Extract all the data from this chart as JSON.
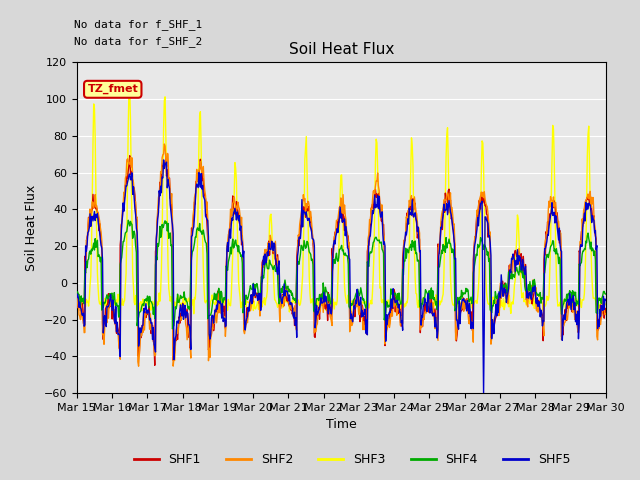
{
  "title": "Soil Heat Flux",
  "ylabel": "Soil Heat Flux",
  "xlabel": "Time",
  "annotation_line1": "No data for f_SHF_1",
  "annotation_line2": "No data for f_SHF_2",
  "legend_label": "TZ_fmet",
  "ylim": [
    -60,
    120
  ],
  "yticks": [
    -60,
    -40,
    -20,
    0,
    20,
    40,
    60,
    80,
    100,
    120
  ],
  "xtick_labels": [
    "Mar 15",
    "Mar 16",
    "Mar 17",
    "Mar 18",
    "Mar 19",
    "Mar 20",
    "Mar 21",
    "Mar 22",
    "Mar 23",
    "Mar 24",
    "Mar 25",
    "Mar 26",
    "Mar 27",
    "Mar 28",
    "Mar 29",
    "Mar 30"
  ],
  "series_colors": {
    "SHF1": "#cc0000",
    "SHF2": "#ff8800",
    "SHF3": "#ffff00",
    "SHF4": "#00aa00",
    "SHF5": "#0000cc"
  },
  "bg_color": "#e8e8e8",
  "fig_bg_color": "#d8d8d8",
  "line_width": 1.0,
  "n_days": 15,
  "pts_per_day": 48
}
